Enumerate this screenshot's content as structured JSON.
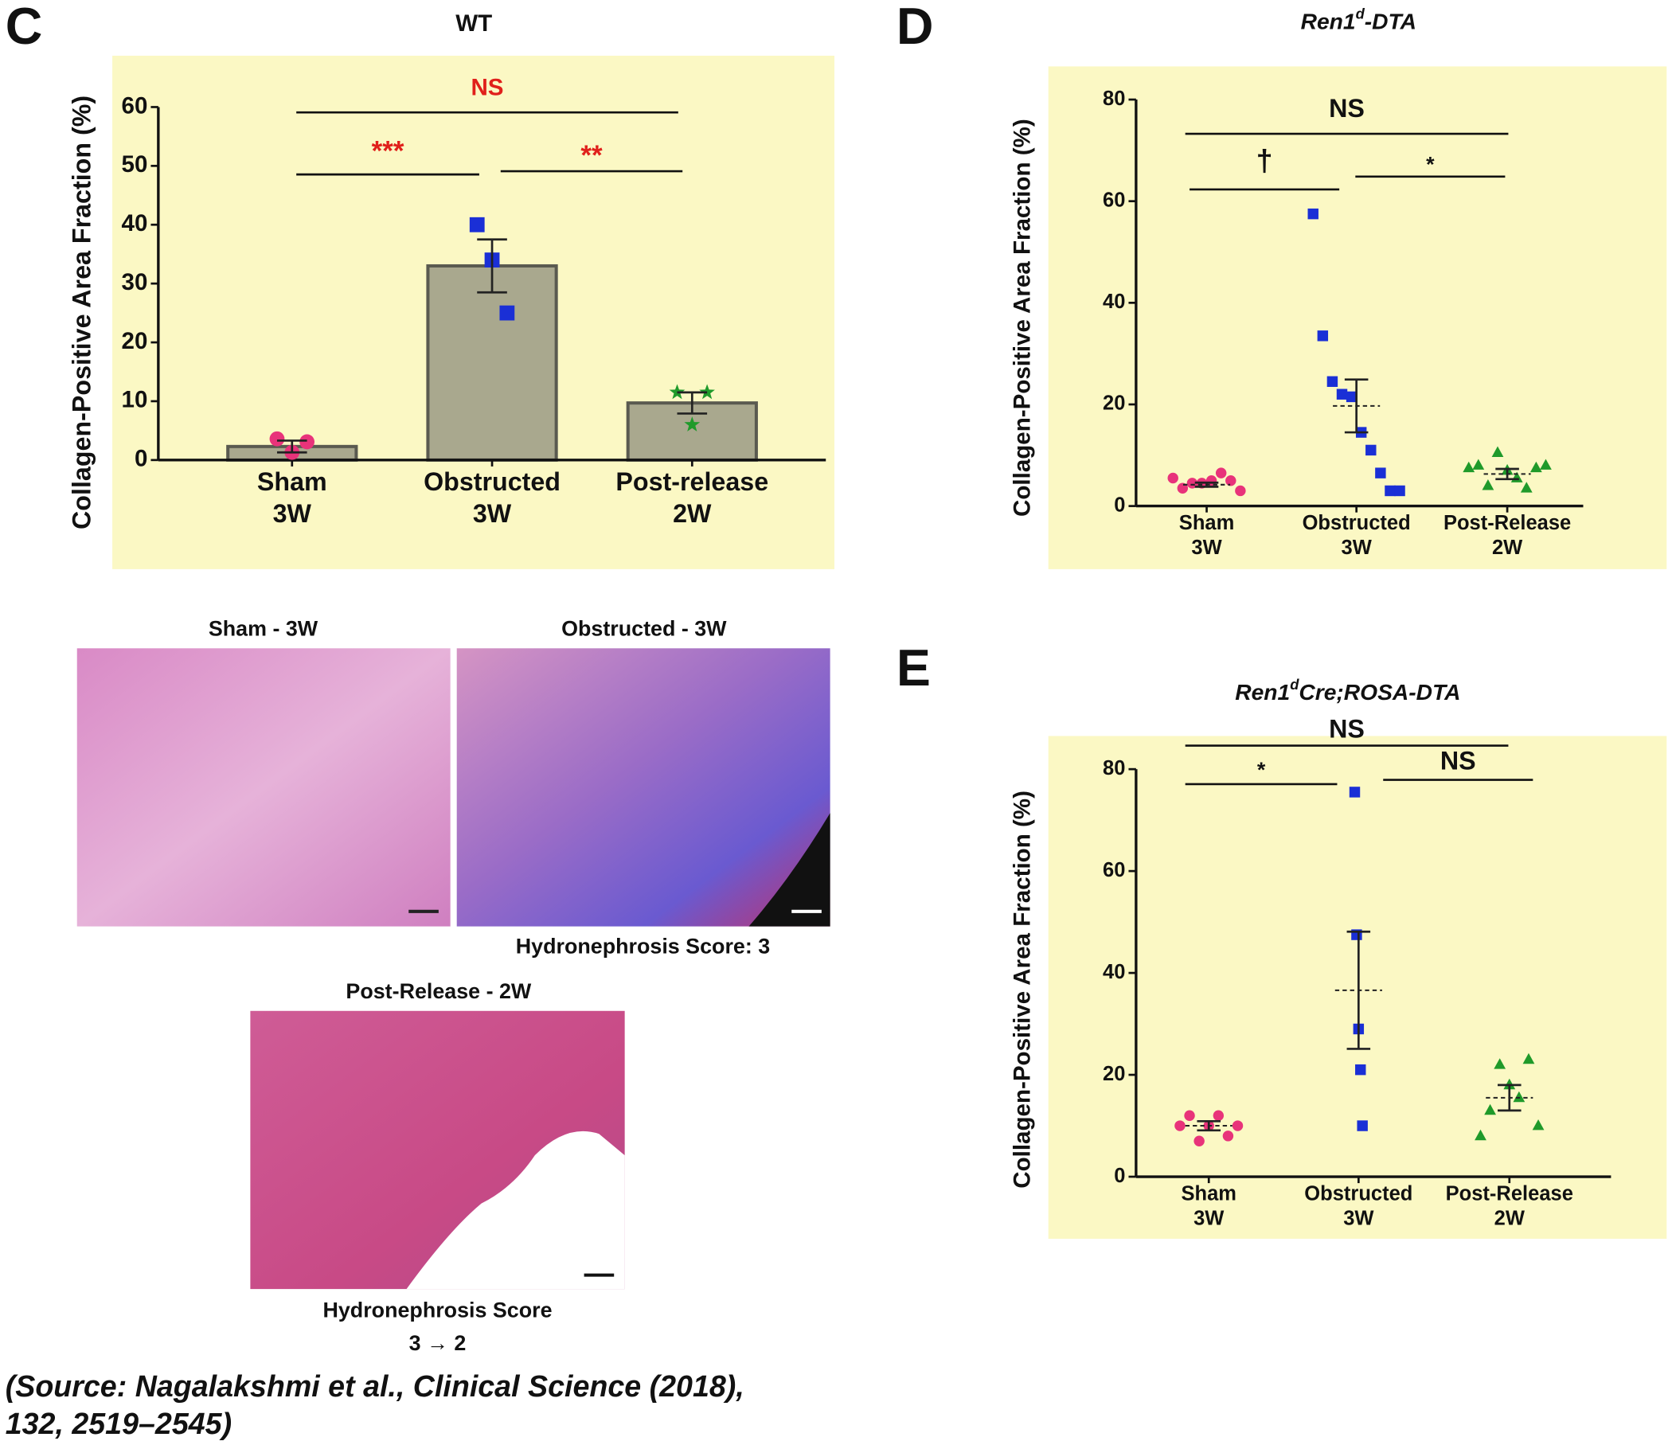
{
  "panel_letters": [
    "C",
    "D",
    "E"
  ],
  "micrographs": {
    "sham": "Sham - 3W",
    "obstructed": "Obstructed - 3W",
    "obstructed_score": "Hydronephrosis Score: 3",
    "post": "Post-Release - 2W",
    "post_score": "Hydronephrosis Score",
    "post_score_change": "3 → 2"
  },
  "source": [
    "(Source: Nagalakshmi  et al., Clinical Science (2018),",
    "132, 2519–2545)"
  ],
  "chart_data": [
    {
      "type": "bar",
      "title": "WT",
      "y_label": "Collagen-Positive  Area Fraction (%)",
      "categories": [
        [
          "Sham",
          "3W"
        ],
        [
          "Obstructed",
          "3W"
        ],
        [
          "Post-release",
          "2W"
        ]
      ],
      "means": [
        2.3,
        33,
        9.7
      ],
      "errors": [
        1,
        4.5,
        1.8
      ],
      "points": [
        [
          3.6,
          1.3,
          3.1
        ],
        [
          40,
          34,
          25
        ],
        [
          11.5,
          6,
          11.5
        ]
      ],
      "colors": [
        "#e8337a",
        "#1a2fd6",
        "#1f9a2a"
      ],
      "markers": [
        "circle",
        "square",
        "star"
      ],
      "bar_color": "#a9a88e",
      "background": "#fbf8c4",
      "ylim": [
        0,
        60
      ],
      "yticks": [
        0,
        10,
        20,
        30,
        40,
        50,
        60
      ],
      "annotations": [
        "NS",
        "***",
        "**"
      ],
      "annotation_color": "#e0201b"
    },
    {
      "type": "dot",
      "title": [
        "Ren1",
        "d",
        "-DTA"
      ],
      "y_label": "Collagen-Positive  Area Fraction (%)",
      "categories": [
        [
          "Sham",
          "3W"
        ],
        [
          "Obstructed",
          "3W"
        ],
        [
          "Post-Release",
          "2W"
        ]
      ],
      "means": [
        4.2,
        19.7,
        6.3
      ],
      "errors": [
        0.4,
        5.2,
        1
      ],
      "points": [
        [
          5.5,
          3.5,
          4.5,
          4.5,
          5,
          6.5,
          5,
          3
        ],
        [
          57.5,
          33.5,
          24.5,
          22,
          21.5,
          14.5,
          11,
          6.5,
          3,
          3
        ],
        [
          7.5,
          8,
          4,
          10.5,
          7,
          5.5,
          3.5,
          7.5,
          8
        ]
      ],
      "colors": [
        "#e8337a",
        "#1a2fd6",
        "#1f9a2a"
      ],
      "markers": [
        "circle",
        "square",
        "triangle"
      ],
      "background": "#fbf8c4",
      "ylim": [
        0,
        80
      ],
      "yticks": [
        0,
        20,
        40,
        60,
        80
      ],
      "annotations": [
        "NS",
        "†",
        "*"
      ],
      "annotation_color": "#111111"
    },
    {
      "type": "dot",
      "title": [
        "Ren1",
        "d",
        "Cre;ROSA-DTA"
      ],
      "y_label": "Collagen-Positive  Area Fraction (%)",
      "categories": [
        [
          "Sham",
          "3W"
        ],
        [
          "Obstructed",
          "3W"
        ],
        [
          "Post-Release",
          "2W"
        ]
      ],
      "means": [
        10,
        36.6,
        15.5
      ],
      "errors": [
        0.9,
        11.5,
        2.5
      ],
      "points": [
        [
          10,
          12,
          7,
          10,
          12,
          8,
          10
        ],
        [
          75.5,
          47.5,
          29,
          21,
          10
        ],
        [
          8,
          13,
          22,
          18,
          15.5,
          23,
          10
        ]
      ],
      "colors": [
        "#e8337a",
        "#1a2fd6",
        "#1f9a2a"
      ],
      "markers": [
        "circle",
        "square",
        "triangle"
      ],
      "background": "#fbf8c4",
      "ylim": [
        0,
        80
      ],
      "yticks": [
        0,
        20,
        40,
        60,
        80
      ],
      "annotations": [
        "NS",
        "*",
        "NS"
      ],
      "annotation_color": "#111111"
    }
  ]
}
